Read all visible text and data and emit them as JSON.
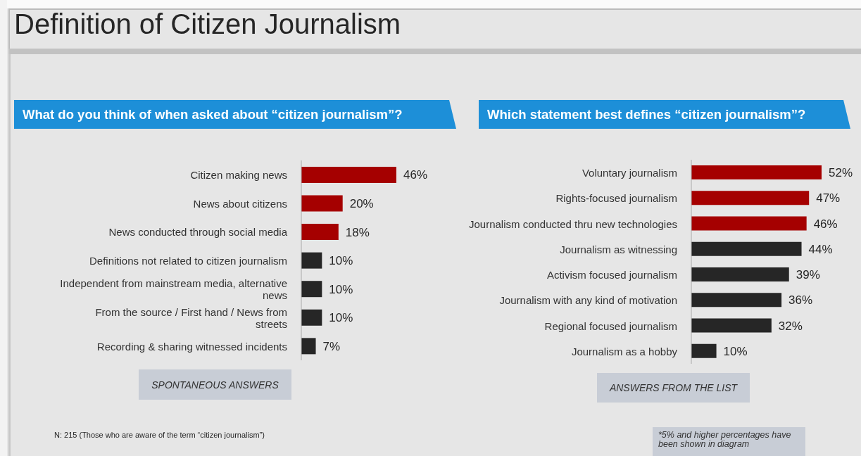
{
  "chart_data": [
    {
      "type": "bar",
      "orientation": "horizontal",
      "title": "Definition of Citizen Journalism",
      "subtitle": "What do you think of when asked about “citizen journalism”?",
      "categories": [
        "Citizen making news",
        "News about citizens",
        "News conducted through social media",
        "Definitions not related to citizen journalism",
        "Independent from mainstream media, alternative news",
        "From the source / First hand / News from streets",
        "Recording & sharing witnessed incidents"
      ],
      "values": [
        46,
        20,
        18,
        10,
        10,
        10,
        7
      ],
      "colors": [
        "#a50000",
        "#a50000",
        "#a50000",
        "#262626",
        "#262626",
        "#262626",
        "#262626"
      ],
      "value_labels": [
        "46%",
        "20%",
        "18%",
        "10%",
        "10%",
        "10%",
        "7%"
      ],
      "tick_labels": "y",
      "annotations": [
        "SPONTANEOUS ANSWERS",
        "N: 215 (Those who are aware of the term “citizen journalism”)"
      ]
    },
    {
      "type": "bar",
      "orientation": "horizontal",
      "subtitle": "Which statement best defines “citizen journalism”?",
      "categories": [
        "Voluntary journalism",
        "Rights-focused journalism",
        "Journalism conducted thru new technologies",
        "Journalism as witnessing",
        "Activism focused journalism",
        "Journalism with any kind of motivation",
        "Regional focused journalism",
        "Journalism as a hobby"
      ],
      "values": [
        52,
        47,
        46,
        44,
        39,
        36,
        32,
        10
      ],
      "colors": [
        "#a50000",
        "#a50000",
        "#a50000",
        "#262626",
        "#262626",
        "#262626",
        "#262626",
        "#262626"
      ],
      "value_labels": [
        "52%",
        "47%",
        "46%",
        "44%",
        "39%",
        "36%",
        "32%",
        "10%"
      ],
      "tick_labels": "y",
      "annotations": [
        "ANSWERS FROM THE LIST",
        "*5% and higher percentages have been shown in diagram"
      ]
    }
  ]
}
